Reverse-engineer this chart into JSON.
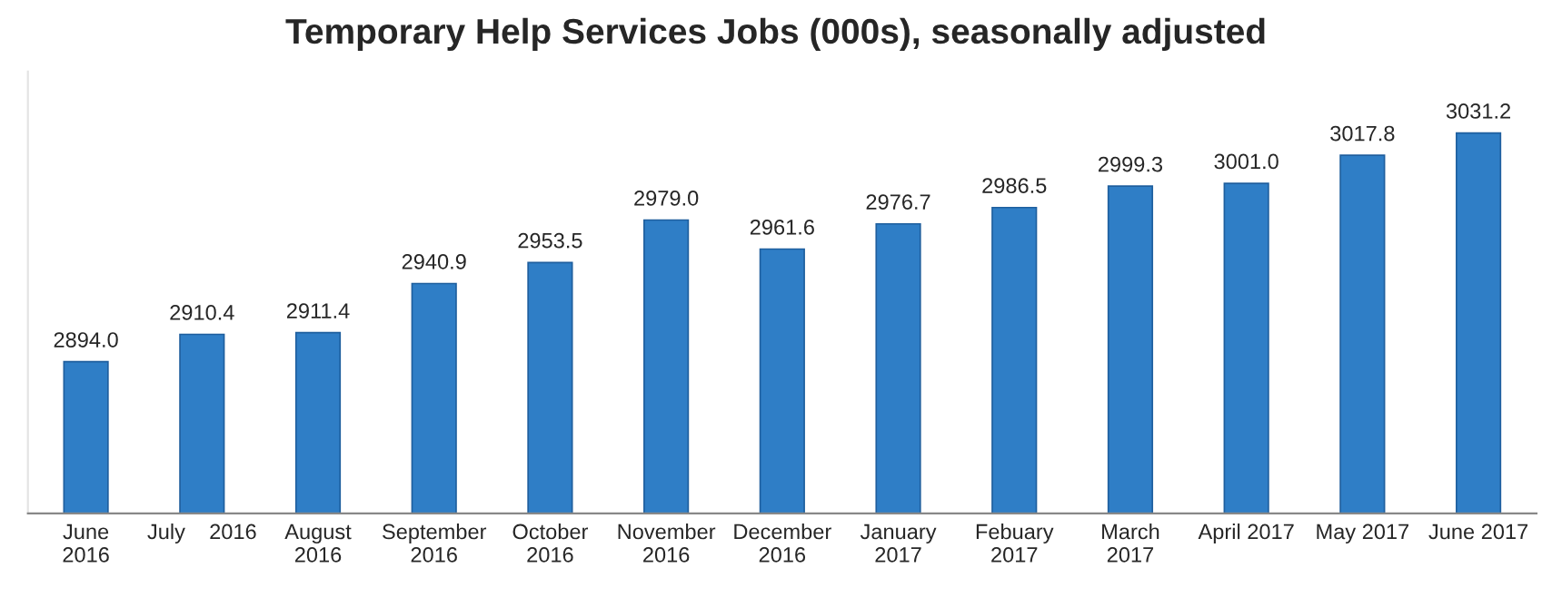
{
  "chart_data": {
    "type": "bar",
    "title": "Temporary Help Services Jobs (000s), seasonally adjusted",
    "categories": [
      "June\n2016",
      "July    2016",
      "August\n2016",
      "September\n2016",
      "October\n2016",
      "November\n2016",
      "December\n2016",
      "January\n2017",
      "Febuary\n2017",
      "March\n2017",
      "April 2017",
      "May 2017",
      "June 2017"
    ],
    "values": [
      2894.0,
      2910.4,
      2911.4,
      2940.9,
      2953.5,
      2979.0,
      2961.6,
      2976.7,
      2986.5,
      2999.3,
      3001.0,
      3017.8,
      3031.2
    ],
    "color": "#2f7ec6",
    "ylim": [
      2803,
      3068
    ],
    "value_labels": [
      "2894.0",
      "2910.4",
      "2911.4",
      "2940.9",
      "2953.5",
      "2979.0",
      "2961.6",
      "2976.7",
      "2986.5",
      "2999.3",
      "3001.0",
      "3017.8",
      "3031.2"
    ],
    "grid": false,
    "legend": false
  }
}
